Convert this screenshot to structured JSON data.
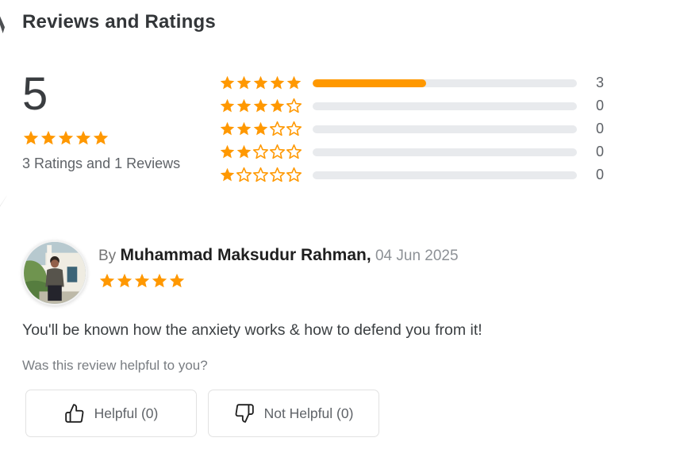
{
  "header": {
    "title": "Reviews and Ratings"
  },
  "summary": {
    "average": "5",
    "stars_filled": 5,
    "caption": "3 Ratings and 1 Reviews"
  },
  "breakdown": {
    "rows": [
      {
        "stars": 5,
        "count": "3",
        "fill_pct": 43
      },
      {
        "stars": 4,
        "count": "0",
        "fill_pct": 0
      },
      {
        "stars": 3,
        "count": "0",
        "fill_pct": 0
      },
      {
        "stars": 2,
        "count": "0",
        "fill_pct": 0
      },
      {
        "stars": 1,
        "count": "0",
        "fill_pct": 0
      }
    ]
  },
  "review": {
    "by_label": "By ",
    "author": "Muhammad Maksudur Rahman,",
    "date": " 04 Jun 2025",
    "stars": 5,
    "text": "You'll be known how the anxiety works & how to defend you from it!",
    "helpful_prompt": "Was this review helpful to you?"
  },
  "buttons": {
    "helpful": "Helpful (0)",
    "not_helpful": "Not Helpful (0)"
  },
  "icons": {
    "star_filled": "star-filled-icon",
    "star_outline": "star-outline-icon",
    "thumb_up": "thumbs-up-outline-icon",
    "thumb_down": "thumbs-down-outline-icon"
  },
  "colors": {
    "star_orange": "#ff9800",
    "bar_fill": "#ff9800",
    "bar_track": "#e8eaed",
    "title_text": "#333639",
    "body_text": "#3c4043",
    "muted_text": "#757575"
  }
}
